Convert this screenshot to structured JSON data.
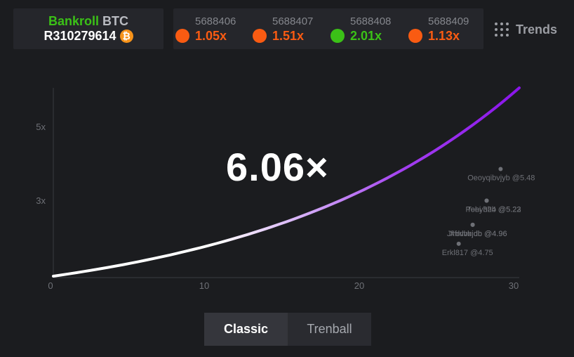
{
  "bankroll": {
    "label_highlight": "Bankroll",
    "label_currency": "BTC",
    "id": "R310279614",
    "coin_icon": "bitcoin-icon",
    "coin_symbol": "₿"
  },
  "history": [
    {
      "id": "5688406",
      "multiplier": "1.05x",
      "color": "#f95b12"
    },
    {
      "id": "5688407",
      "multiplier": "1.51x",
      "color": "#f95b12"
    },
    {
      "id": "5688408",
      "multiplier": "2.01x",
      "color": "#3bc117"
    },
    {
      "id": "5688409",
      "multiplier": "1.13x",
      "color": "#f95b12"
    }
  ],
  "trends": {
    "label": "Trends",
    "icon": "grid-dots-icon"
  },
  "current_multiplier": "6.06×",
  "chart_data": {
    "type": "line",
    "x_ticks": [
      "0",
      "10",
      "20",
      "30"
    ],
    "y_ticks": [
      "5x",
      "3x"
    ],
    "xlim": [
      0,
      30
    ],
    "ylim": [
      1,
      6.06
    ],
    "curve": {
      "start": [
        0,
        1
      ],
      "end": [
        30,
        6.06
      ]
    },
    "player_cashouts": [
      {
        "label": "Oeoyqibvjyb @5.48",
        "x": 28.8,
        "y": 3.88
      },
      {
        "label": "Poeyhhb @5.23",
        "x": 27.9,
        "y": 3.03
      },
      {
        "label": "Tehi 324 @5.22",
        "x": 27.9,
        "y": 3.03
      },
      {
        "label": "Xfrdvbjdb @4.96",
        "x": 27.0,
        "y": 2.38
      },
      {
        "label": "Jfrdvbxjdb @4.96",
        "x": 27.0,
        "y": 2.38
      },
      {
        "label": "Erkl817 @4.75",
        "x": 26.1,
        "y": 1.87
      }
    ]
  },
  "mode_tabs": [
    {
      "label": "Classic",
      "active": true
    },
    {
      "label": "Trenball",
      "active": false
    }
  ]
}
